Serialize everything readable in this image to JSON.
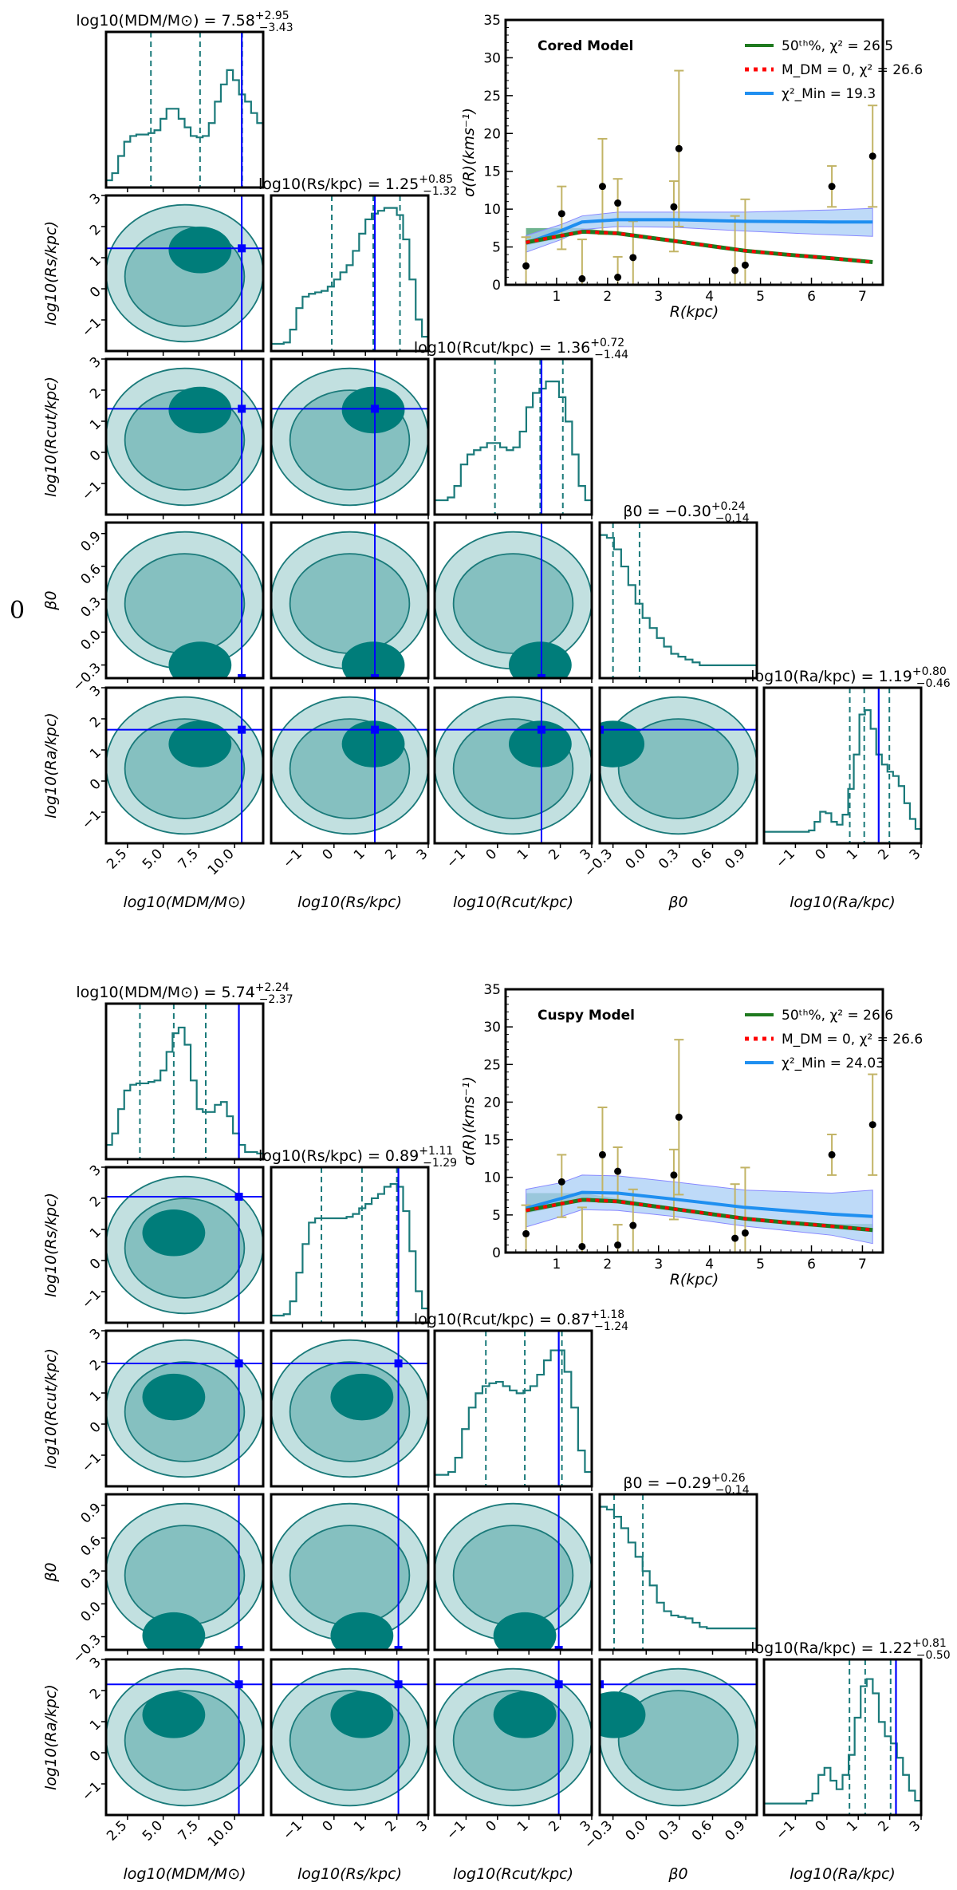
{
  "figure": {
    "side_label": "0",
    "colors": {
      "hist": "#1a7a7a",
      "contour_fill_1": "#c2e0e0",
      "contour_fill_2": "#85c0c0",
      "contour_fill_3": "#007d7a",
      "truth_line": "#0000ff",
      "errorbar": "#c2b466",
      "median_model": "#1f7a1f",
      "no_dm_model": "#ff0000",
      "chi2min_model": "#1f8ff0",
      "chi2min_band": "#a8cdf5"
    }
  },
  "chart_data": [
    {
      "type": "corner",
      "model": "Cored",
      "parameters": [
        "log10(M_DM/M_sun)",
        "log10(R_s/kpc)",
        "log10(R_cut/kpc)",
        "beta_0",
        "log10(R_a/kpc)"
      ],
      "axis_labels": [
        "log10(MDM/M⊙)",
        "log10(Rs/kpc)",
        "log10(Rcut/kpc)",
        "β0",
        "log10(Ra/kpc)"
      ],
      "ranges": [
        [
          1,
          12
        ],
        [
          -2,
          3
        ],
        [
          -2,
          3
        ],
        [
          -0.42,
          1.0
        ],
        [
          -2,
          3
        ]
      ],
      "ticks": [
        [
          "2.5",
          "5.0",
          "7.5",
          "10.0"
        ],
        [
          "−1",
          "0",
          "1",
          "2",
          "3"
        ],
        [
          "−1",
          "0",
          "1",
          "2",
          "3"
        ],
        [
          "−0.3",
          "0.0",
          "0.3",
          "0.6",
          "0.9"
        ],
        [
          "−1",
          "0",
          "1",
          "2",
          "3"
        ]
      ],
      "tick_values": [
        [
          2.5,
          5.0,
          7.5,
          10.0
        ],
        [
          -1,
          0,
          1,
          2,
          3
        ],
        [
          -1,
          0,
          1,
          2,
          3
        ],
        [
          -0.3,
          0.0,
          0.3,
          0.6,
          0.9
        ],
        [
          -1,
          0,
          1,
          2,
          3
        ]
      ],
      "titles": [
        {
          "label": "log10(MDM/M⊙) = 7.58",
          "median": 7.58,
          "plus": 2.95,
          "minus": 3.43
        },
        {
          "label": "log10(Rs/kpc) = 1.25",
          "median": 1.25,
          "plus": 0.85,
          "minus": 1.32
        },
        {
          "label": "log10(Rcut/kpc) = 1.36",
          "median": 1.36,
          "plus": 0.72,
          "minus": 1.44
        },
        {
          "label": "β0 = −0.30",
          "median": -0.3,
          "plus": 0.24,
          "minus": 0.14
        },
        {
          "label": "log10(Ra/kpc) = 1.19",
          "median": 1.19,
          "plus": 0.8,
          "minus": 0.46
        }
      ],
      "truth_values": [
        10.5,
        1.3,
        1.4,
        -0.42,
        1.65
      ],
      "histograms": [
        [
          0.05,
          0.1,
          0.22,
          0.32,
          0.36,
          0.37,
          0.37,
          0.38,
          0.4,
          0.48,
          0.55,
          0.55,
          0.48,
          0.42,
          0.36,
          0.35,
          0.36,
          0.45,
          0.6,
          0.72,
          0.82,
          0.75,
          0.65,
          0.6,
          0.52,
          0.45
        ],
        [
          0.05,
          0.05,
          0.06,
          0.15,
          0.3,
          0.38,
          0.4,
          0.41,
          0.42,
          0.45,
          0.5,
          0.55,
          0.6,
          0.7,
          0.82,
          0.92,
          0.96,
          0.98,
          1.0,
          1.0,
          0.95,
          0.78,
          0.5,
          0.22,
          0.1
        ],
        [
          0.1,
          0.1,
          0.12,
          0.2,
          0.35,
          0.42,
          0.45,
          0.47,
          0.5,
          0.5,
          0.47,
          0.45,
          0.47,
          0.58,
          0.75,
          0.85,
          0.88,
          0.93,
          0.93,
          0.82,
          0.65,
          0.42,
          0.2,
          0.1
        ],
        [
          1.0,
          0.98,
          0.9,
          0.78,
          0.65,
          0.52,
          0.42,
          0.35,
          0.28,
          0.22,
          0.17,
          0.15,
          0.13,
          0.11,
          0.09,
          0.09,
          0.09,
          0.09,
          0.09,
          0.09,
          0.09,
          0.09
        ],
        [
          0.08,
          0.08,
          0.08,
          0.08,
          0.08,
          0.08,
          0.08,
          0.08,
          0.09,
          0.15,
          0.22,
          0.21,
          0.15,
          0.13,
          0.2,
          0.38,
          0.62,
          0.9,
          0.93,
          0.8,
          0.62,
          0.55,
          0.5,
          0.47,
          0.4,
          0.28,
          0.17,
          0.1
        ]
      ],
      "quantile_markers": [
        [
          4.14,
          7.58,
          10.53
        ],
        [
          -0.07,
          1.25,
          2.1
        ],
        [
          -0.08,
          1.36,
          2.08
        ],
        [
          -0.44,
          -0.3,
          -0.06
        ],
        [
          0.73,
          1.19,
          1.99
        ]
      ]
    },
    {
      "type": "line",
      "model": "Cored",
      "title": "Cored Model",
      "xlabel": "R(kpc)",
      "ylabel": "σ(R)(kms⁻¹)",
      "xlim": [
        0,
        7.4
      ],
      "ylim": [
        0,
        35
      ],
      "x_ticks": [
        1,
        2,
        3,
        4,
        5,
        6,
        7
      ],
      "y_ticks": [
        0,
        5,
        10,
        15,
        20,
        25,
        30,
        35
      ],
      "legend_position": "top-right",
      "legend": [
        {
          "label": "50ᵗʰ%,  χ² = 26.5",
          "series": "median"
        },
        {
          "label": "M_DM = 0, χ² = 26.6",
          "series": "no_dm"
        },
        {
          "label": "χ²_Min = 19.3",
          "series": "chi2min"
        }
      ],
      "data_points": {
        "x": [
          0.4,
          1.1,
          1.5,
          1.9,
          2.2,
          2.2,
          2.5,
          3.3,
          3.4,
          4.5,
          4.7,
          6.4,
          7.2
        ],
        "y": [
          2.5,
          9.4,
          0.8,
          13.0,
          10.8,
          1.0,
          3.6,
          10.3,
          18.0,
          1.9,
          2.6,
          13.0,
          17.0
        ],
        "err_low": [
          2.5,
          4.7,
          0.8,
          6.3,
          4.0,
          1.0,
          3.6,
          5.9,
          10.3,
          1.9,
          2.6,
          2.7,
          6.7
        ],
        "err_high": [
          3.8,
          3.6,
          5.2,
          6.3,
          3.2,
          2.7,
          4.8,
          3.4,
          10.3,
          7.2,
          8.7,
          2.7,
          6.7
        ]
      },
      "series": [
        {
          "name": "median",
          "x": [
            0.4,
            1.1,
            1.5,
            1.6,
            2.2,
            3.3,
            4.7,
            5.5,
            6.4,
            7.2
          ],
          "y": [
            5.6,
            6.5,
            7.0,
            7.0,
            6.8,
            5.8,
            4.5,
            4.0,
            3.5,
            3.0
          ],
          "band_low": [
            5.2,
            6.2,
            6.9,
            6.9,
            6.7,
            5.7,
            4.4,
            3.9,
            3.4,
            2.9
          ],
          "band_high": [
            7.5,
            7.5,
            7.5,
            7.4,
            7.0,
            5.9,
            4.6,
            4.1,
            3.6,
            3.2
          ]
        },
        {
          "name": "no_dm",
          "x": [
            0.4,
            1.1,
            1.5,
            1.6,
            2.2,
            3.3,
            4.7,
            5.5,
            6.4,
            7.2
          ],
          "y": [
            5.6,
            6.5,
            7.0,
            7.0,
            6.8,
            5.8,
            4.5,
            4.0,
            3.5,
            3.0
          ]
        },
        {
          "name": "chi2min",
          "x": [
            0.4,
            1.1,
            1.5,
            2.2,
            3.3,
            4.7,
            6.4,
            7.2
          ],
          "y": [
            5.5,
            7.2,
            8.3,
            8.6,
            8.6,
            8.4,
            8.3,
            8.3
          ],
          "band_low": [
            4.3,
            6.0,
            7.3,
            7.7,
            7.6,
            7.1,
            6.6,
            6.4
          ],
          "band_high": [
            6.5,
            8.0,
            9.1,
            9.6,
            9.6,
            9.6,
            9.9,
            10.1
          ]
        }
      ]
    },
    {
      "type": "corner",
      "model": "Cuspy",
      "parameters": [
        "log10(M_DM/M_sun)",
        "log10(R_s/kpc)",
        "log10(R_cut/kpc)",
        "beta_0",
        "log10(R_a/kpc)"
      ],
      "axis_labels": [
        "log10(MDM/M⊙)",
        "log10(Rs/kpc)",
        "log10(Rcut/kpc)",
        "β0",
        "log10(Ra/kpc)"
      ],
      "ranges": [
        [
          1,
          12
        ],
        [
          -2,
          3
        ],
        [
          -2,
          3
        ],
        [
          -0.42,
          1.0
        ],
        [
          -2,
          3
        ]
      ],
      "ticks": [
        [
          "2.5",
          "5.0",
          "7.5",
          "10.0"
        ],
        [
          "−1",
          "0",
          "1",
          "2",
          "3"
        ],
        [
          "−1",
          "0",
          "1",
          "2",
          "3"
        ],
        [
          "−0.3",
          "0.0",
          "0.3",
          "0.6",
          "0.9"
        ],
        [
          "−1",
          "0",
          "1",
          "2",
          "3"
        ]
      ],
      "tick_values": [
        [
          2.5,
          5.0,
          7.5,
          10.0
        ],
        [
          -1,
          0,
          1,
          2,
          3
        ],
        [
          -1,
          0,
          1,
          2,
          3
        ],
        [
          -0.3,
          0.0,
          0.3,
          0.6,
          0.9
        ],
        [
          -1,
          0,
          1,
          2,
          3
        ]
      ],
      "titles": [
        {
          "label": "log10(MDM/M⊙) = 5.74",
          "median": 5.74,
          "plus": 2.24,
          "minus": 2.37
        },
        {
          "label": "log10(Rs/kpc) = 0.89",
          "median": 0.89,
          "plus": 1.11,
          "minus": 1.29
        },
        {
          "label": "log10(Rcut/kpc) = 0.87",
          "median": 0.87,
          "plus": 1.18,
          "minus": 1.24
        },
        {
          "label": "β0 = −0.29",
          "median": -0.29,
          "plus": 0.26,
          "minus": 0.14
        },
        {
          "label": "log10(Ra/kpc) = 1.22",
          "median": 1.22,
          "plus": 0.81,
          "minus": 0.5
        }
      ],
      "truth_values": [
        10.3,
        2.05,
        1.95,
        -0.42,
        2.2
      ],
      "histograms": [
        [
          0.1,
          0.18,
          0.35,
          0.48,
          0.52,
          0.53,
          0.53,
          0.54,
          0.55,
          0.62,
          0.75,
          0.88,
          0.92,
          0.8,
          0.55,
          0.35,
          0.33,
          0.33,
          0.38,
          0.4,
          0.3,
          0.18,
          0.1,
          0.05,
          0.05,
          0.04
        ],
        [
          0.05,
          0.05,
          0.06,
          0.15,
          0.35,
          0.55,
          0.7,
          0.73,
          0.73,
          0.73,
          0.73,
          0.73,
          0.74,
          0.76,
          0.8,
          0.83,
          0.87,
          0.9,
          0.95,
          0.97,
          0.95,
          0.78,
          0.5,
          0.22,
          0.1
        ],
        [
          0.08,
          0.08,
          0.1,
          0.2,
          0.4,
          0.55,
          0.65,
          0.7,
          0.72,
          0.73,
          0.7,
          0.67,
          0.65,
          0.67,
          0.7,
          0.78,
          0.88,
          0.95,
          0.95,
          0.8,
          0.55,
          0.25,
          0.1
        ],
        [
          1.0,
          0.98,
          0.93,
          0.85,
          0.75,
          0.65,
          0.55,
          0.45,
          0.33,
          0.27,
          0.24,
          0.23,
          0.22,
          0.19,
          0.16,
          0.15,
          0.15,
          0.15,
          0.15,
          0.15,
          0.15,
          0.15
        ],
        [
          0.08,
          0.08,
          0.08,
          0.08,
          0.08,
          0.08,
          0.08,
          0.1,
          0.15,
          0.28,
          0.33,
          0.24,
          0.18,
          0.28,
          0.42,
          0.68,
          0.9,
          0.95,
          0.85,
          0.65,
          0.55,
          0.5,
          0.4,
          0.28,
          0.17,
          0.1
        ]
      ],
      "quantile_markers": [
        [
          3.37,
          5.74,
          7.98
        ],
        [
          -0.4,
          0.89,
          2.0
        ],
        [
          -0.37,
          0.87,
          2.05
        ],
        [
          -0.43,
          -0.29,
          -0.03
        ],
        [
          0.72,
          1.22,
          2.03
        ]
      ]
    },
    {
      "type": "line",
      "model": "Cuspy",
      "title": "Cuspy Model",
      "xlabel": "R(kpc)",
      "ylabel": "σ(R)(kms⁻¹)",
      "xlim": [
        0,
        7.4
      ],
      "ylim": [
        0,
        35
      ],
      "x_ticks": [
        1,
        2,
        3,
        4,
        5,
        6,
        7
      ],
      "y_ticks": [
        0,
        5,
        10,
        15,
        20,
        25,
        30,
        35
      ],
      "legend_position": "top-right",
      "legend": [
        {
          "label": "50ᵗʰ%,  χ² = 26.6",
          "series": "median"
        },
        {
          "label": "M_DM = 0, χ² = 26.6",
          "series": "no_dm"
        },
        {
          "label": "χ²_Min = 24.03",
          "series": "chi2min"
        }
      ],
      "data_points": {
        "x": [
          0.4,
          1.1,
          1.5,
          1.9,
          2.2,
          2.2,
          2.5,
          3.3,
          3.4,
          4.5,
          4.7,
          6.4,
          7.2
        ],
        "y": [
          2.5,
          9.4,
          0.8,
          13.0,
          10.8,
          1.0,
          3.6,
          10.3,
          18.0,
          1.9,
          2.6,
          13.0,
          17.0
        ],
        "err_low": [
          2.5,
          4.7,
          0.8,
          6.3,
          4.0,
          1.0,
          3.6,
          5.9,
          10.3,
          1.9,
          2.6,
          2.7,
          6.7
        ],
        "err_high": [
          3.8,
          3.6,
          5.2,
          6.3,
          3.2,
          2.7,
          4.8,
          3.4,
          10.3,
          7.2,
          8.7,
          2.7,
          6.7
        ]
      },
      "series": [
        {
          "name": "median",
          "x": [
            0.4,
            1.1,
            1.5,
            1.6,
            2.2,
            3.3,
            4.7,
            5.5,
            6.4,
            7.2
          ],
          "y": [
            5.6,
            6.5,
            7.0,
            7.0,
            6.8,
            5.8,
            4.5,
            4.0,
            3.5,
            3.0
          ],
          "band_low": [
            5.2,
            6.2,
            6.8,
            6.8,
            6.6,
            5.6,
            4.3,
            3.8,
            3.3,
            2.7
          ],
          "band_high": [
            7.9,
            7.9,
            7.9,
            7.8,
            7.2,
            6.0,
            4.7,
            4.2,
            3.8,
            3.8
          ]
        },
        {
          "name": "no_dm",
          "x": [
            0.4,
            1.1,
            1.5,
            1.6,
            2.2,
            3.3,
            4.7,
            5.5,
            6.4,
            7.2
          ],
          "y": [
            5.6,
            6.5,
            7.0,
            7.0,
            6.8,
            5.8,
            4.5,
            4.0,
            3.5,
            3.0
          ]
        },
        {
          "name": "chi2min",
          "x": [
            0.4,
            1.1,
            1.5,
            2.2,
            3.3,
            4.7,
            6.4,
            7.2
          ],
          "y": [
            5.9,
            7.2,
            8.0,
            7.9,
            7.1,
            6.0,
            5.1,
            4.8
          ],
          "band_low": [
            3.4,
            4.8,
            5.7,
            5.6,
            4.8,
            3.5,
            2.3,
            1.2
          ],
          "band_high": [
            8.4,
            9.3,
            10.3,
            10.2,
            9.4,
            8.3,
            7.9,
            8.3
          ]
        }
      ]
    }
  ]
}
